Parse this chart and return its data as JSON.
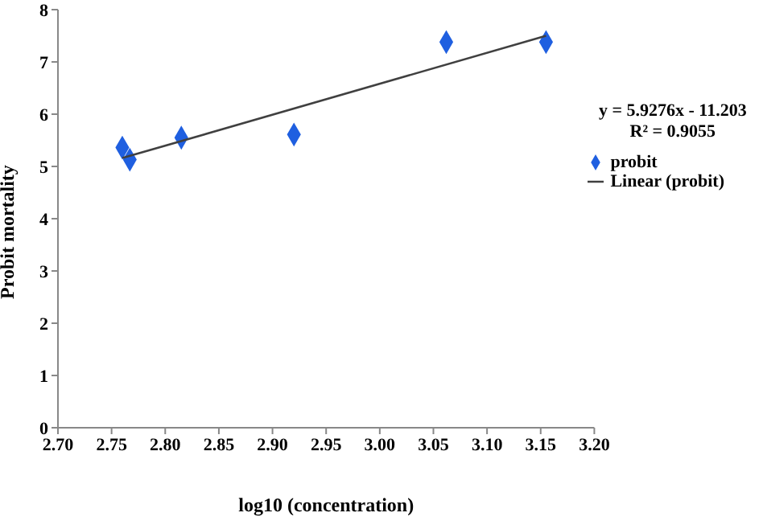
{
  "chart_data": {
    "type": "scatter",
    "xlabel": "log10 (concentration)",
    "ylabel": "Probit mortality",
    "series": [
      {
        "name": "probit",
        "color": "#1f5fe0",
        "marker": "diamond",
        "x": [
          2.76,
          2.767,
          2.815,
          2.92,
          3.062,
          3.155
        ],
        "values": [
          5.36,
          5.13,
          5.55,
          5.61,
          7.38,
          7.38
        ]
      },
      {
        "name": "Linear (probit)",
        "type": "line",
        "color": "#404040",
        "marker": "none",
        "x": [
          2.76,
          3.155
        ],
        "values": [
          5.16,
          7.5
        ]
      }
    ],
    "xlim": [
      2.7,
      3.2
    ],
    "xticks": [
      {
        "value": 2.7,
        "label": "2.70"
      },
      {
        "value": 2.75,
        "label": "2.75"
      },
      {
        "value": 2.8,
        "label": "2.80"
      },
      {
        "value": 2.85,
        "label": "2.85"
      },
      {
        "value": 2.9,
        "label": "2.90"
      },
      {
        "value": 2.95,
        "label": "2.95"
      },
      {
        "value": 3.0,
        "label": "3.00"
      },
      {
        "value": 3.05,
        "label": "3.05"
      },
      {
        "value": 3.1,
        "label": "3.10"
      },
      {
        "value": 3.15,
        "label": "3.15"
      },
      {
        "value": 3.2,
        "label": "3.20"
      }
    ],
    "ylim": [
      0,
      8
    ],
    "yticks": [
      0,
      1,
      2,
      3,
      4,
      5,
      6,
      7,
      8
    ],
    "annotations": [
      "y = 5.9276x - 11.203",
      "R² = 0.9055"
    ],
    "legend": "right",
    "grid": false
  }
}
